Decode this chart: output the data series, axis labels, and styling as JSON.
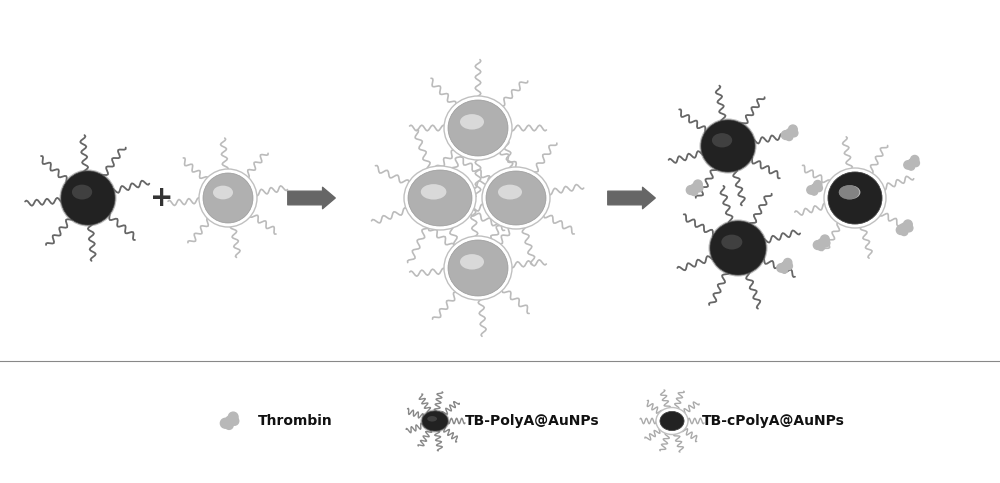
{
  "bg_color": "#ffffff",
  "dark_core": "#222222",
  "dark_highlight": "#555555",
  "light_ring": "#d8d8d8",
  "light_body": "#b0b0b0",
  "light_highlight": "#e8e8e8",
  "strand_dark": "#666666",
  "strand_light": "#bbbbbb",
  "thrombin_color": "#b8b8b8",
  "arrow_color": "#666666",
  "plus_color": "#333333",
  "text_color": "#111111",
  "legend_text": [
    "Thrombin",
    "TB-PolyA@AuNPs",
    "TB-cPolyA@AuNPs"
  ]
}
